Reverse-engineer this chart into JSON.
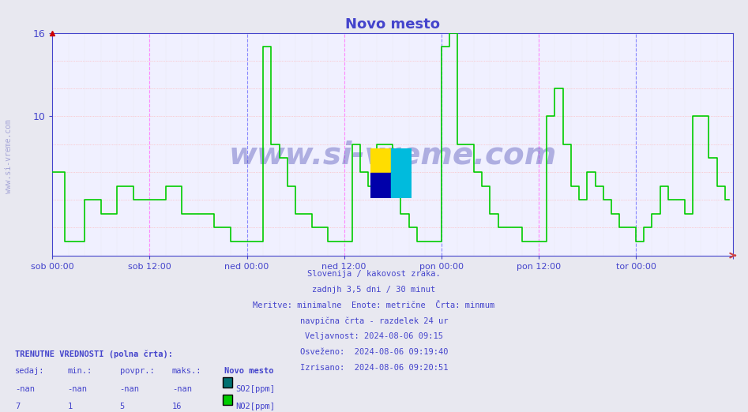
{
  "title": "Novo mesto",
  "bg_color": "#e8e8f0",
  "plot_bg_color": "#f0f0ff",
  "line_color_no2": "#00cc00",
  "line_color_so2": "#007070",
  "grid_color_h": "#ffaaaa",
  "grid_color_v": "#dddddd",
  "vline_color_midnight": "#8888ff",
  "vline_color_noon": "#ff88ff",
  "axis_color": "#4444cc",
  "text_color": "#4444cc",
  "ylim": [
    0,
    16
  ],
  "yticks": [
    10,
    16
  ],
  "xlabel_ticks": [
    "sob 00:00",
    "sob 12:00",
    "ned 00:00",
    "ned 12:00",
    "pon 00:00",
    "pon 12:00",
    "tor 00:00",
    ""
  ],
  "subtitle_lines": [
    "Slovenija / kakovost zraka.",
    "zadnjh 3,5 dni / 30 minut",
    "Meritve: minimalne  Enote: metrične  Črta: minmum",
    "navpična črta - razdelek 24 ur",
    "Veljavnost: 2024-08-06 09:15",
    "Osveženo:  2024-08-06 09:19:40",
    "Izrisano:  2024-08-06 09:20:51"
  ],
  "footer_bold": "TRENUTNE VREDNOSTI (polna črta):",
  "footer_cols": [
    "sedaj:",
    "min.:",
    "povpr.:",
    "maks.:"
  ],
  "footer_so2": [
    "-nan",
    "-nan",
    "-nan",
    "-nan"
  ],
  "footer_no2": [
    "7",
    "1",
    "5",
    "16"
  ],
  "station_name": "Novo mesto",
  "watermark": "www.si-vreme.com",
  "logo_colors": [
    "#ffdd00",
    "#00bbdd",
    "#0000aa",
    "#00bbdd"
  ]
}
